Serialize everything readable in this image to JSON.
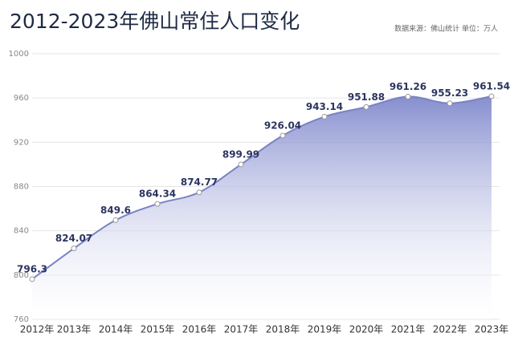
{
  "chart_data": {
    "type": "area",
    "title": "2012-2023年佛山常住人口变化",
    "subtitle": "数据来源：佛山统计  单位：万人",
    "categories": [
      "2012年",
      "2013年",
      "2014年",
      "2015年",
      "2016年",
      "2017年",
      "2018年",
      "2019年",
      "2020年",
      "2021年",
      "2022年",
      "2023年"
    ],
    "values": [
      796.3,
      824.07,
      849.6,
      864.34,
      874.77,
      899.99,
      926.04,
      943.14,
      951.88,
      961.26,
      955.23,
      961.54
    ],
    "color": "#7a82c4",
    "ylim": [
      760,
      1000
    ],
    "yticks": [
      760,
      800,
      840,
      880,
      920,
      960,
      1000
    ],
    "grid": true
  }
}
